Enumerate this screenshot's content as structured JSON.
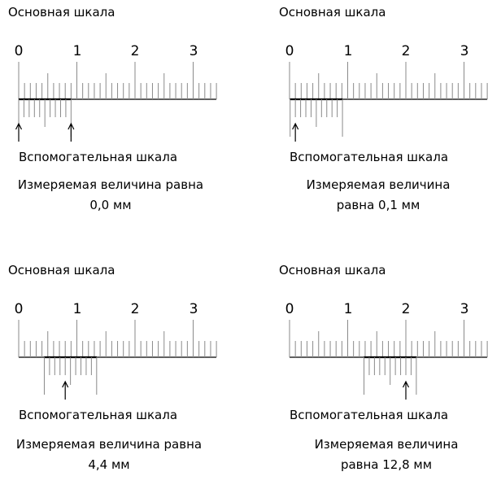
{
  "panels": [
    {
      "id": "p1",
      "main_label": "Основная шкала",
      "numbers": [
        "0",
        "1",
        "2",
        "3"
      ],
      "vernier_label": "Вспомогательная шкала",
      "result_lines": [
        "Измеряемая величина равна",
        "0,0 мм"
      ],
      "vernier_offset_mm": 0.0,
      "arrows": [
        "vernier-zero",
        "vernier-end"
      ]
    },
    {
      "id": "p2",
      "main_label": "Основная шкала",
      "numbers": [
        "0",
        "1",
        "2",
        "3"
      ],
      "vernier_label": "Вспомогательная шкала",
      "result_lines": [
        "Измеряемая величина",
        "равна 0,1 мм"
      ],
      "vernier_offset_mm": 0.1,
      "arrows": [
        "vernier-line-1"
      ]
    },
    {
      "id": "p3",
      "main_label": "Основная шкала",
      "numbers": [
        "0",
        "1",
        "2",
        "3"
      ],
      "vernier_label": "Вспомогательная шкала",
      "result_lines": [
        "Измеряемая величина равна",
        "4,4 мм"
      ],
      "vernier_offset_mm": 4.4,
      "arrows": [
        "vernier-line-4"
      ]
    },
    {
      "id": "p4",
      "main_label": "Основная шкала",
      "numbers": [
        "0",
        "1",
        "2",
        "3"
      ],
      "vernier_label": "Вспомогательная шкала",
      "result_lines": [
        "Измеряемая величина",
        "равна 12,8 мм"
      ],
      "vernier_offset_mm": 12.8,
      "arrows": [
        "vernier-line-8"
      ]
    }
  ]
}
